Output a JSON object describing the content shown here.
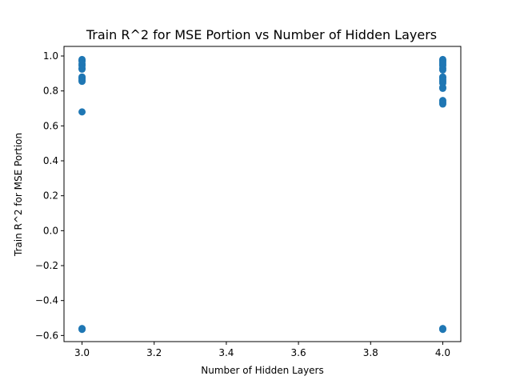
{
  "chart_data": {
    "type": "scatter",
    "title": "Train R^2 for MSE Portion vs Number of Hidden Layers",
    "xlabel": "Number of Hidden Layers",
    "ylabel": "Train R^2 for MSE Portion",
    "xlim": [
      2.95,
      4.05
    ],
    "ylim": [
      -0.635,
      1.055
    ],
    "grid": false,
    "marker_color": "#1f77b4",
    "xticks": [
      3.0,
      3.2,
      3.4,
      3.6,
      3.8,
      4.0
    ],
    "xtick_labels": [
      "3.0",
      "3.2",
      "3.4",
      "3.6",
      "3.8",
      "4.0"
    ],
    "yticks": [
      -0.6,
      -0.4,
      -0.2,
      0.0,
      0.2,
      0.4,
      0.6,
      0.8,
      1.0
    ],
    "ytick_labels": [
      "−0.6",
      "−0.4",
      "−0.2",
      "0.0",
      "0.2",
      "0.4",
      "0.6",
      "0.8",
      "1.0"
    ],
    "points": [
      {
        "x": 3,
        "y": 0.98
      },
      {
        "x": 3,
        "y": 0.975
      },
      {
        "x": 3,
        "y": 0.97
      },
      {
        "x": 3,
        "y": 0.955
      },
      {
        "x": 3,
        "y": 0.945
      },
      {
        "x": 3,
        "y": 0.93
      },
      {
        "x": 3,
        "y": 0.925
      },
      {
        "x": 3,
        "y": 0.88
      },
      {
        "x": 3,
        "y": 0.875
      },
      {
        "x": 3,
        "y": 0.87
      },
      {
        "x": 3,
        "y": 0.86
      },
      {
        "x": 3,
        "y": 0.855
      },
      {
        "x": 3,
        "y": 0.68
      },
      {
        "x": 3,
        "y": -0.565
      },
      {
        "x": 3,
        "y": -0.56
      },
      {
        "x": 4,
        "y": 0.98
      },
      {
        "x": 4,
        "y": 0.975
      },
      {
        "x": 4,
        "y": 0.965
      },
      {
        "x": 4,
        "y": 0.955
      },
      {
        "x": 4,
        "y": 0.945
      },
      {
        "x": 4,
        "y": 0.93
      },
      {
        "x": 4,
        "y": 0.92
      },
      {
        "x": 4,
        "y": 0.88
      },
      {
        "x": 4,
        "y": 0.875
      },
      {
        "x": 4,
        "y": 0.865
      },
      {
        "x": 4,
        "y": 0.855
      },
      {
        "x": 4,
        "y": 0.845
      },
      {
        "x": 4,
        "y": 0.82
      },
      {
        "x": 4,
        "y": 0.815
      },
      {
        "x": 4,
        "y": 0.745
      },
      {
        "x": 4,
        "y": 0.735
      },
      {
        "x": 4,
        "y": 0.725
      },
      {
        "x": 4,
        "y": -0.565
      },
      {
        "x": 4,
        "y": -0.56
      }
    ]
  }
}
